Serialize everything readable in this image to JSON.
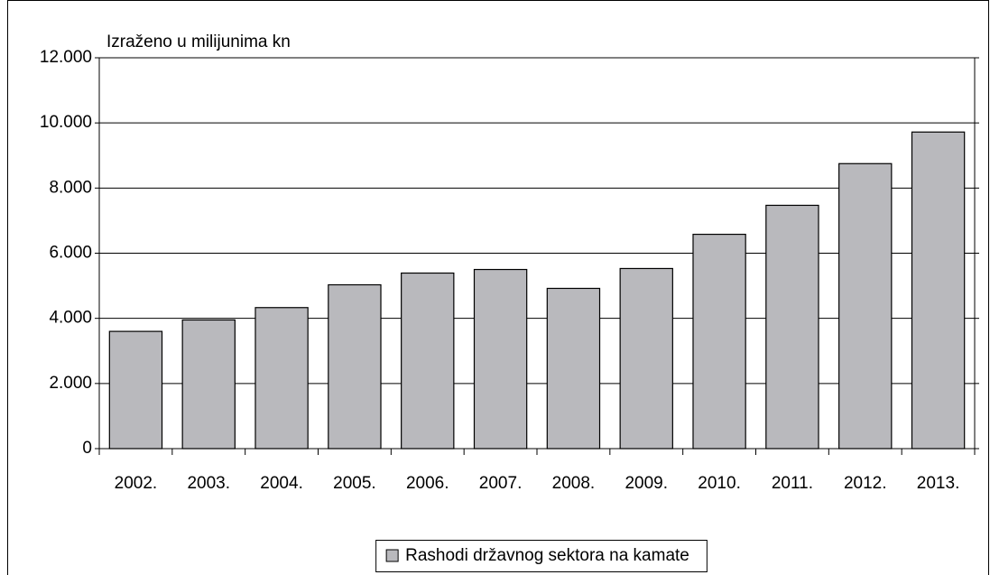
{
  "chart_data": {
    "type": "bar",
    "axis_label": "Izraženo u milijunima kn",
    "categories": [
      "2002.",
      "2003.",
      "2004.",
      "2005.",
      "2006.",
      "2007.",
      "2008.",
      "2009.",
      "2010.",
      "2011.",
      "2012.",
      "2013."
    ],
    "series": [
      {
        "name": "Rashodi državnog sektora na kamate",
        "color": "#b9b9bd",
        "values": [
          3600,
          3950,
          4330,
          5030,
          5390,
          5500,
          4920,
          5530,
          6580,
          7470,
          8750,
          9720
        ]
      }
    ],
    "ylim": [
      0,
      12000
    ],
    "yticks": [
      0,
      {
        "value": 2000,
        "label": "2.000"
      },
      {
        "value": 4000,
        "label": "4.000"
      },
      {
        "value": 6000,
        "label": "6.000"
      },
      {
        "value": 8000,
        "label": "8.000"
      },
      {
        "value": 10000,
        "label": "10.000"
      },
      {
        "value": 12000,
        "label": "12.000"
      }
    ],
    "grid": true,
    "legend": "bottom"
  }
}
